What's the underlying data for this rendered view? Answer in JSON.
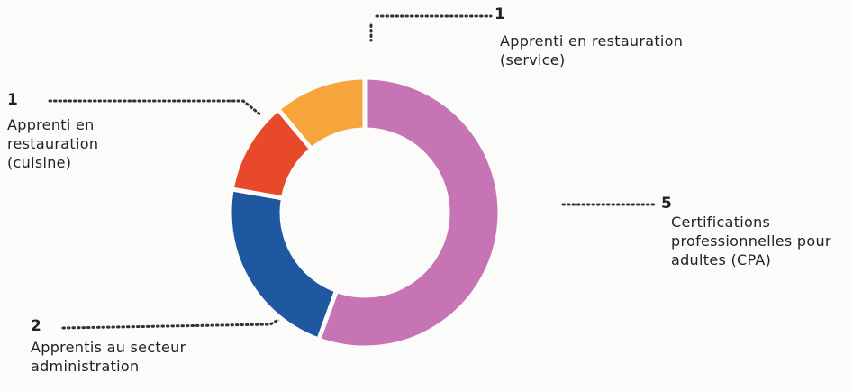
{
  "chart_data": {
    "type": "donut",
    "categories": [
      "Certifications professionnelles pour adultes (CPA)",
      "Apprentis au secteur administration",
      "Apprenti en restauration (cuisine)",
      "Apprenti en restauration (service)"
    ],
    "values": [
      5,
      2,
      1,
      1
    ],
    "colors": [
      "#c774b4",
      "#1f57a0",
      "#e8492a",
      "#f5a53a"
    ]
  }
}
